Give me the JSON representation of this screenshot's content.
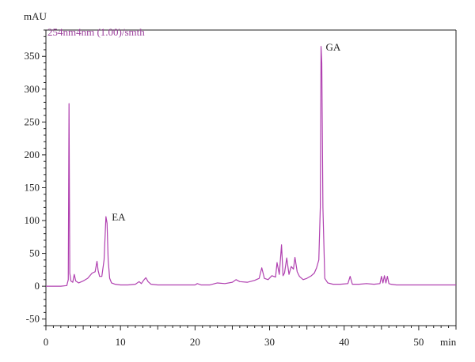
{
  "chart_data": {
    "type": "line",
    "ylabel": "mAU",
    "xlabel": "min",
    "xlim": [
      0,
      55
    ],
    "ylim": [
      -60,
      390
    ],
    "xticks": [
      0,
      10,
      20,
      30,
      40,
      50
    ],
    "yticks": [
      -50,
      0,
      50,
      100,
      150,
      200,
      250,
      300,
      350
    ],
    "grid": false,
    "legend_position": "top-left",
    "colors": {
      "line": "#b040b0",
      "axis": "#222222",
      "legend_text": "#9b3f9b"
    },
    "series": [
      {
        "name": "254nm4nm (1.00)/smth",
        "x": [
          0,
          2.0,
          2.8,
          3.0,
          3.1,
          3.2,
          3.35,
          3.6,
          3.8,
          4.0,
          4.4,
          5.0,
          5.6,
          6.2,
          6.6,
          6.85,
          7.0,
          7.2,
          7.5,
          7.8,
          8.05,
          8.2,
          8.35,
          8.55,
          8.8,
          9.3,
          10.0,
          11.0,
          12.0,
          12.5,
          12.8,
          13.1,
          13.4,
          13.7,
          14.1,
          15.0,
          17.0,
          19.0,
          20.0,
          20.3,
          20.8,
          22.0,
          23.0,
          24.0,
          25.0,
          25.5,
          26.0,
          27.0,
          28.0,
          28.6,
          28.95,
          29.3,
          29.8,
          30.3,
          30.8,
          31.0,
          31.3,
          31.6,
          31.8,
          32.0,
          32.3,
          32.6,
          32.9,
          33.2,
          33.4,
          33.7,
          34.0,
          34.5,
          35.0,
          35.6,
          36.0,
          36.3,
          36.6,
          36.8,
          36.9,
          37.0,
          37.15,
          37.4,
          37.8,
          38.5,
          39.5,
          40.5,
          40.8,
          41.1,
          42.0,
          43.0,
          44.0,
          44.8,
          45.0,
          45.2,
          45.4,
          45.6,
          45.8,
          46.0,
          46.3,
          47.0,
          48.0,
          50.0,
          52.0,
          55.0
        ],
        "values": [
          0,
          0,
          1,
          10,
          278,
          20,
          8,
          6,
          18,
          8,
          5,
          8,
          12,
          20,
          22,
          38,
          24,
          15,
          15,
          40,
          106,
          96,
          40,
          12,
          5,
          3,
          2,
          2,
          3,
          7,
          4,
          9,
          13,
          7,
          3,
          2,
          2,
          2,
          2,
          4,
          2,
          2,
          5,
          4,
          6,
          10,
          7,
          6,
          9,
          12,
          28,
          12,
          10,
          16,
          14,
          36,
          18,
          63,
          16,
          20,
          43,
          18,
          30,
          26,
          44,
          22,
          15,
          10,
          12,
          16,
          20,
          28,
          40,
          120,
          365,
          340,
          120,
          12,
          5,
          3,
          3,
          4,
          15,
          3,
          3,
          4,
          3,
          4,
          15,
          5,
          16,
          5,
          15,
          4,
          3,
          2,
          2,
          2,
          2,
          2
        ]
      }
    ],
    "annotations": [
      {
        "text": "EA",
        "x": 8.2,
        "y": 106
      },
      {
        "text": "GA",
        "x": 36.9,
        "y": 365
      }
    ]
  }
}
